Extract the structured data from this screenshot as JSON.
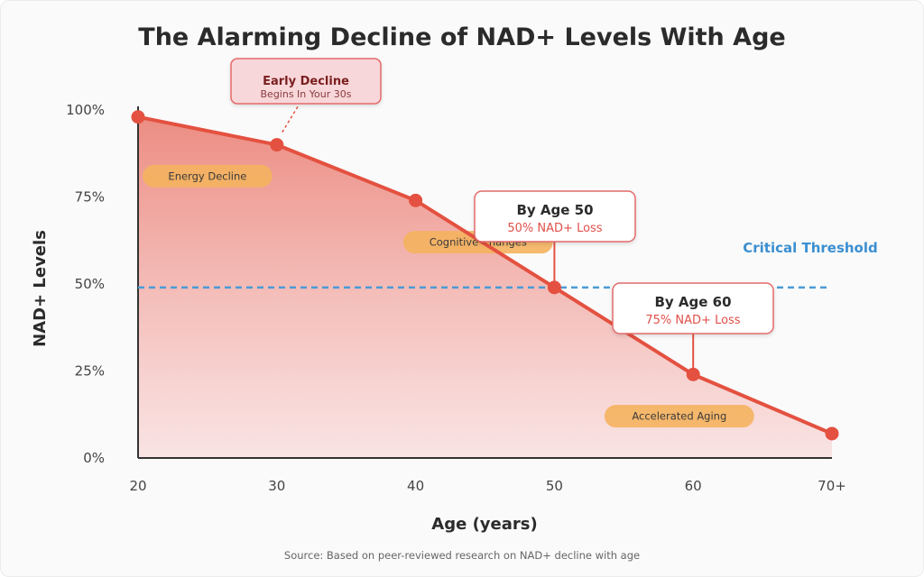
{
  "chart_data": {
    "type": "area",
    "title": "The Alarming Decline of NAD+ Levels With Age",
    "xlabel": "Age (years)",
    "ylabel": "NAD+ Levels",
    "x": [
      "20",
      "30",
      "40",
      "50",
      "60",
      "70+"
    ],
    "values": [
      98,
      90,
      74,
      49,
      24,
      7
    ],
    "ylim": [
      0,
      100
    ],
    "yticks": [
      "0%",
      "25%",
      "50%",
      "75%",
      "100%"
    ],
    "ytick_values": [
      0,
      25,
      50,
      75,
      100
    ],
    "threshold": {
      "value": 49,
      "label": "Critical Threshold"
    },
    "annotations": {
      "early": {
        "title": "Early Decline",
        "subtitle": "Begins In Your 30s",
        "at_x_index": 1
      },
      "age50": {
        "title": "By Age 50",
        "subtitle": "50% NAD+ Loss",
        "at_x_index": 3
      },
      "age60": {
        "title": "By Age 60",
        "subtitle": "75% NAD+ Loss",
        "at_x_index": 4
      },
      "stages": [
        {
          "label": "Energy Decline",
          "x": 25,
          "y": 81
        },
        {
          "label": "Cognitive Changes",
          "x": 44.5,
          "y": 62
        },
        {
          "label": "Accelerated Aging",
          "x": 59,
          "y": 12
        }
      ]
    },
    "grid": false,
    "legend": "none",
    "colors": {
      "line": "#e45140",
      "fill": "#ee8b80",
      "threshold": "#4a9ad6",
      "pill": "#f4b25e"
    }
  },
  "source": "Source: Based on peer-reviewed research on NAD+ decline with age"
}
